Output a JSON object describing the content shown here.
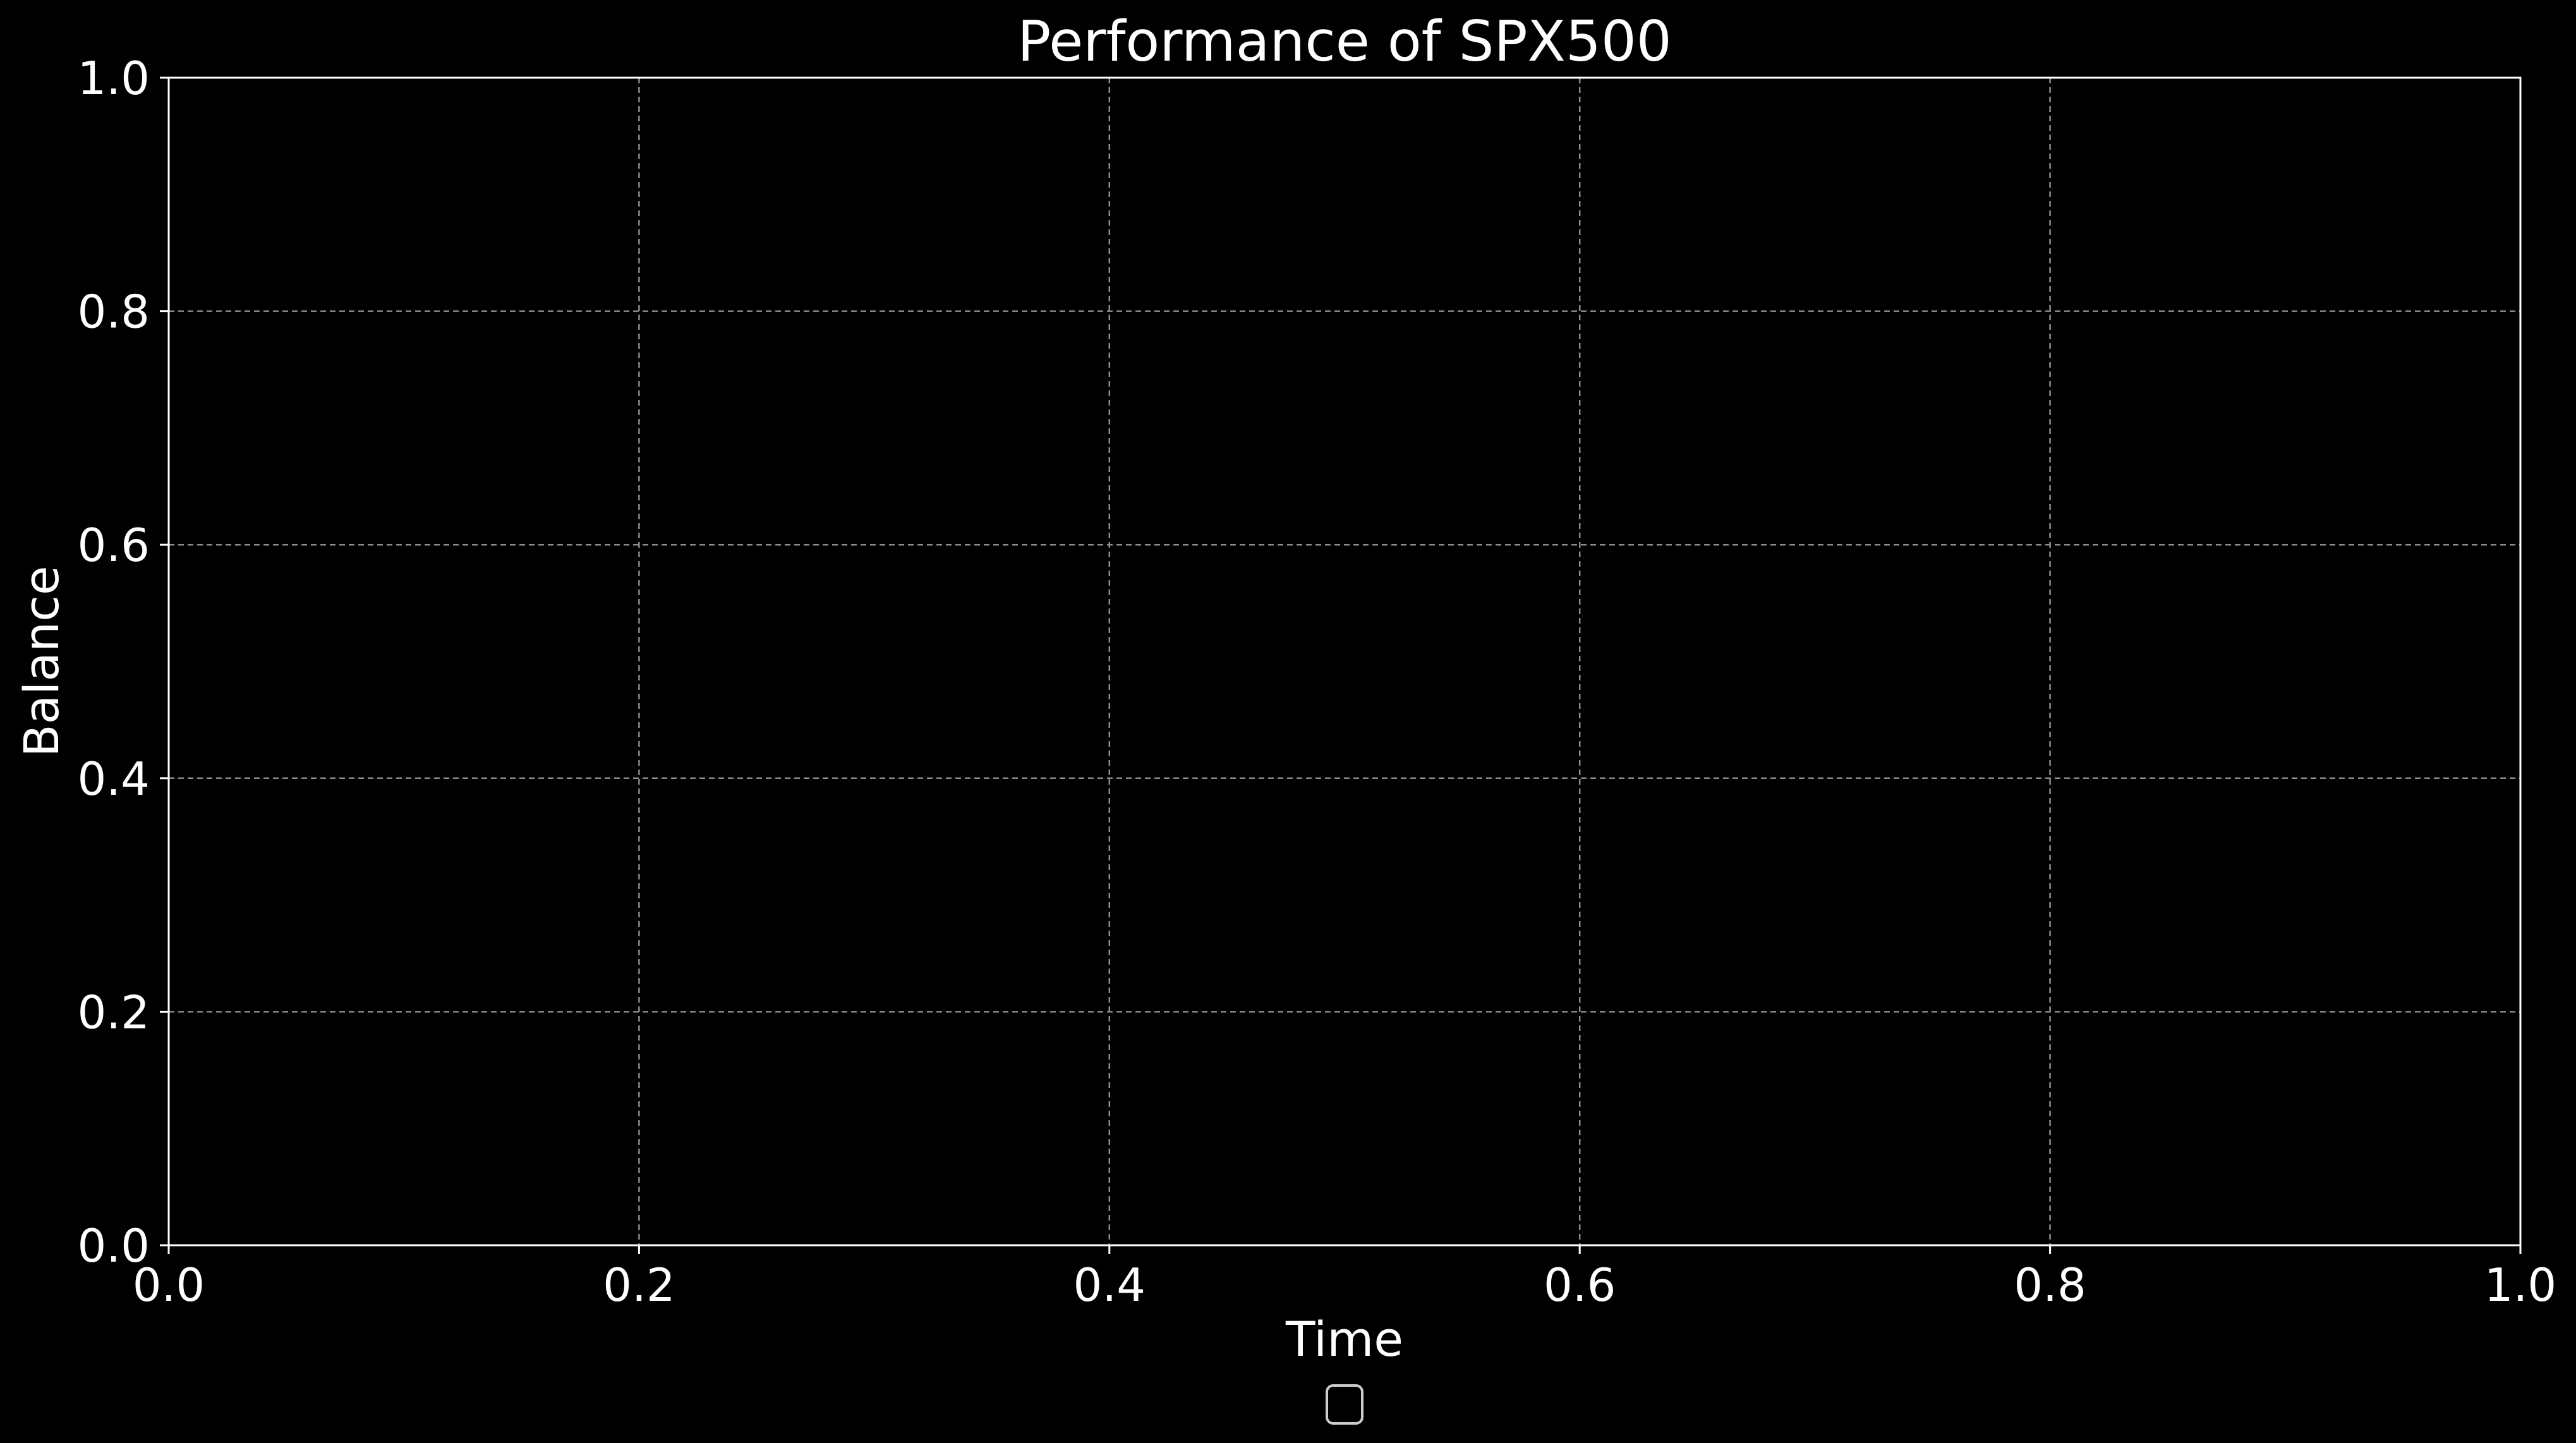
{
  "chart_data": {
    "type": "line",
    "title": "Performance of SPX500",
    "xlabel": "Time",
    "ylabel": "Balance",
    "xlim": [
      0.0,
      1.0
    ],
    "ylim": [
      0.0,
      1.0
    ],
    "xticks": [
      "0.0",
      "0.2",
      "0.4",
      "0.6",
      "0.8",
      "1.0"
    ],
    "yticks": [
      "0.0",
      "0.2",
      "0.4",
      "0.6",
      "0.8",
      "1.0"
    ],
    "grid": true,
    "grid_style": "dashed",
    "legend": "bottom-center",
    "legend_entries": [],
    "series": [],
    "colors": {
      "background": "#000000",
      "foreground": "#ffffff",
      "grid": "#8c8c8c"
    }
  }
}
